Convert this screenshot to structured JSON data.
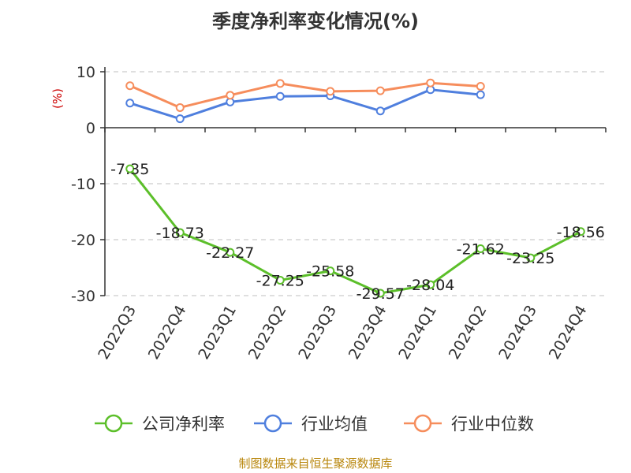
{
  "chart_data": {
    "type": "line",
    "title": "季度净利率变化情况(%)",
    "unit_label": "(%)",
    "categories": [
      "2022Q3",
      "2022Q4",
      "2023Q1",
      "2023Q2",
      "2023Q3",
      "2023Q4",
      "2024Q1",
      "2024Q2",
      "2024Q3",
      "2024Q4"
    ],
    "ylim": [
      -30,
      10
    ],
    "yticks": [
      10,
      0,
      -10,
      -20,
      -30
    ],
    "grid": true,
    "legend_position": "bottom",
    "series": [
      {
        "name": "公司净利率",
        "color": "#5cbf2a",
        "values": [
          -7.35,
          -18.73,
          -22.27,
          -27.25,
          -25.58,
          -29.57,
          -28.04,
          -21.62,
          -23.25,
          -18.56
        ],
        "labels": [
          "-7.35",
          "-18.73",
          "-22.27",
          "-27.25",
          "-25.58",
          "-29.57",
          "-28.04",
          "-21.62",
          "-23.25",
          "-18.56"
        ]
      },
      {
        "name": "行业均值",
        "color": "#4f7fde",
        "values": [
          4.4,
          1.6,
          4.6,
          5.6,
          5.7,
          3.0,
          6.8,
          5.9,
          null,
          null
        ]
      },
      {
        "name": "行业中位数",
        "color": "#f68d5c",
        "values": [
          7.5,
          3.6,
          5.8,
          7.9,
          6.5,
          6.6,
          8.0,
          7.4,
          null,
          null
        ]
      }
    ],
    "source": "制图数据来自恒生聚源数据库"
  }
}
